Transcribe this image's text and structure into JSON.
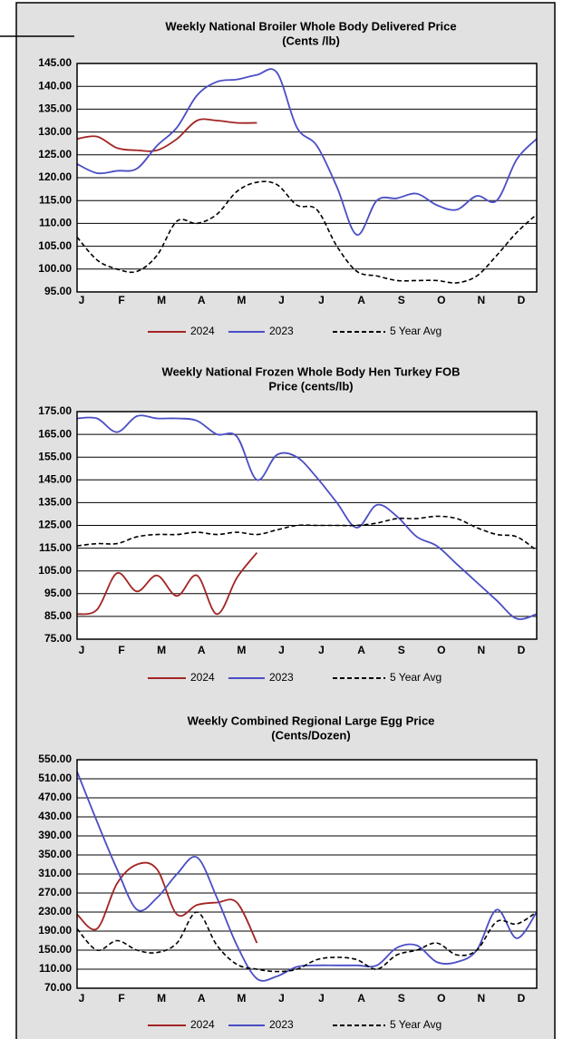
{
  "chart_data": [
    {
      "type": "line",
      "title": [
        "Weekly National Broiler Whole Body Delivered Price",
        "(Cents /lb)"
      ],
      "categories": [
        "J",
        null,
        "F",
        null,
        "M",
        null,
        "A",
        null,
        "M",
        null,
        "J",
        null,
        "J",
        null,
        "A",
        null,
        "S",
        null,
        "O",
        null,
        "N",
        null,
        "D",
        null
      ],
      "series": [
        {
          "name": "2024",
          "color": "#a32424",
          "dashed": false,
          "values": [
            128.5,
            129,
            126.5,
            126,
            126,
            128.5,
            132.5,
            132.5,
            132,
            132,
            null,
            null,
            null,
            null,
            null,
            null,
            null,
            null,
            null,
            null,
            null,
            null,
            null,
            null
          ]
        },
        {
          "name": "2023",
          "color": "#4a4ec4",
          "dashed": false,
          "values": [
            123,
            121,
            121.5,
            122,
            127,
            131,
            138,
            141,
            141.5,
            142.5,
            143,
            131,
            127,
            118,
            107.5,
            115,
            115.5,
            116.5,
            114,
            113,
            116,
            115,
            124,
            128.5
          ]
        },
        {
          "name": "5 Year Avg",
          "color": "#000000",
          "dashed": true,
          "values": [
            107,
            102,
            100,
            99.5,
            103,
            110.5,
            110,
            112,
            117,
            119,
            118.5,
            114,
            113,
            105,
            99.5,
            98.5,
            97.5,
            97.5,
            97.5,
            97,
            98.5,
            103,
            108,
            112
          ]
        }
      ],
      "ylim": [
        95,
        145
      ],
      "yticks": [
        {
          "value": 95,
          "label": "95.00"
        },
        {
          "value": 100,
          "label": "100.00"
        },
        {
          "value": 105,
          "label": "105.00"
        },
        {
          "value": 110,
          "label": "110.00"
        },
        {
          "value": 115,
          "label": "115.00"
        },
        {
          "value": 120,
          "label": "120.00"
        },
        {
          "value": 125,
          "label": "125.00"
        },
        {
          "value": 130,
          "label": "130.00"
        },
        {
          "value": 135,
          "label": "135.00"
        },
        {
          "value": 140,
          "label": "140.00"
        },
        {
          "value": 145,
          "label": "145.00"
        }
      ],
      "grid": true,
      "legend": "bottom"
    },
    {
      "type": "line",
      "title": [
        "Weekly National Frozen Whole Body Hen Turkey FOB",
        "Price (cents/lb)"
      ],
      "categories": [
        "J",
        null,
        "F",
        null,
        "M",
        null,
        "A",
        null,
        "M",
        null,
        "J",
        null,
        "J",
        null,
        "A",
        null,
        "S",
        null,
        "O",
        null,
        "N",
        null,
        "D",
        null
      ],
      "series": [
        {
          "name": "2024",
          "color": "#a32424",
          "dashed": false,
          "values": [
            86,
            88,
            104,
            96,
            103,
            94,
            103,
            86,
            102,
            113,
            null,
            null,
            null,
            null,
            null,
            null,
            null,
            null,
            null,
            null,
            null,
            null,
            null,
            null
          ]
        },
        {
          "name": "2023",
          "color": "#4a4ec4",
          "dashed": false,
          "values": [
            172,
            172,
            166,
            173,
            172,
            172,
            171,
            165,
            164,
            145,
            156,
            155,
            146,
            135,
            124,
            134,
            129,
            120,
            116,
            108,
            100,
            92,
            84,
            86
          ]
        },
        {
          "name": "5 Year Avg",
          "color": "#000000",
          "dashed": true,
          "values": [
            116,
            117,
            117,
            120,
            121,
            121,
            122,
            121,
            122,
            121,
            123,
            125,
            125,
            125,
            125,
            126,
            128,
            128,
            129,
            128,
            124,
            121,
            120,
            114
          ]
        }
      ],
      "ylim": [
        75,
        175
      ],
      "yticks": [
        {
          "value": 75,
          "label": "75.00"
        },
        {
          "value": 85,
          "label": "85.00"
        },
        {
          "value": 95,
          "label": "95.00"
        },
        {
          "value": 105,
          "label": "105.00"
        },
        {
          "value": 115,
          "label": "115.00"
        },
        {
          "value": 125,
          "label": "125.00"
        },
        {
          "value": 135,
          "label": "135.00"
        },
        {
          "value": 145,
          "label": "145.00"
        },
        {
          "value": 155,
          "label": "155.00"
        },
        {
          "value": 165,
          "label": "165.00"
        },
        {
          "value": 175,
          "label": "175.00"
        }
      ],
      "grid": true,
      "legend": "bottom"
    },
    {
      "type": "line",
      "title": [
        "Weekly Combined Regional Large Egg Price",
        "(Cents/Dozen)"
      ],
      "categories": [
        "J",
        null,
        "F",
        null,
        "M",
        null,
        "A",
        null,
        "M",
        null,
        "J",
        null,
        "J",
        null,
        "A",
        null,
        "S",
        null,
        "O",
        null,
        "N",
        null,
        "D",
        null
      ],
      "series": [
        {
          "name": "2024",
          "color": "#a32424",
          "dashed": false,
          "values": [
            225,
            195,
            290,
            330,
            320,
            225,
            245,
            250,
            250,
            165,
            null,
            null,
            null,
            null,
            null,
            null,
            null,
            null,
            null,
            null,
            null,
            null,
            null,
            null
          ]
        },
        {
          "name": "2023",
          "color": "#4a4ec4",
          "dashed": false,
          "values": [
            525,
            420,
            320,
            235,
            260,
            310,
            345,
            260,
            160,
            90,
            95,
            115,
            118,
            118,
            118,
            118,
            155,
            160,
            125,
            125,
            150,
            235,
            175,
            230
          ]
        },
        {
          "name": "5 Year Avg",
          "color": "#000000",
          "dashed": true,
          "values": [
            195,
            150,
            170,
            150,
            145,
            165,
            230,
            160,
            120,
            110,
            105,
            110,
            130,
            135,
            130,
            110,
            140,
            150,
            165,
            140,
            150,
            210,
            205,
            230
          ]
        }
      ],
      "ylim": [
        70,
        550
      ],
      "yticks": [
        {
          "value": 70,
          "label": "70.00"
        },
        {
          "value": 110,
          "label": "110.00"
        },
        {
          "value": 150,
          "label": "150.00"
        },
        {
          "value": 190,
          "label": "190.00"
        },
        {
          "value": 230,
          "label": "230.00"
        },
        {
          "value": 270,
          "label": "270.00"
        },
        {
          "value": 310,
          "label": "310.00"
        },
        {
          "value": 350,
          "label": "350.00"
        },
        {
          "value": 390,
          "label": "390.00"
        },
        {
          "value": 430,
          "label": "430.00"
        },
        {
          "value": 470,
          "label": "470.00"
        },
        {
          "value": 510,
          "label": "510.00"
        },
        {
          "value": 550,
          "label": "550.00"
        }
      ],
      "grid": true,
      "legend": "bottom"
    }
  ]
}
